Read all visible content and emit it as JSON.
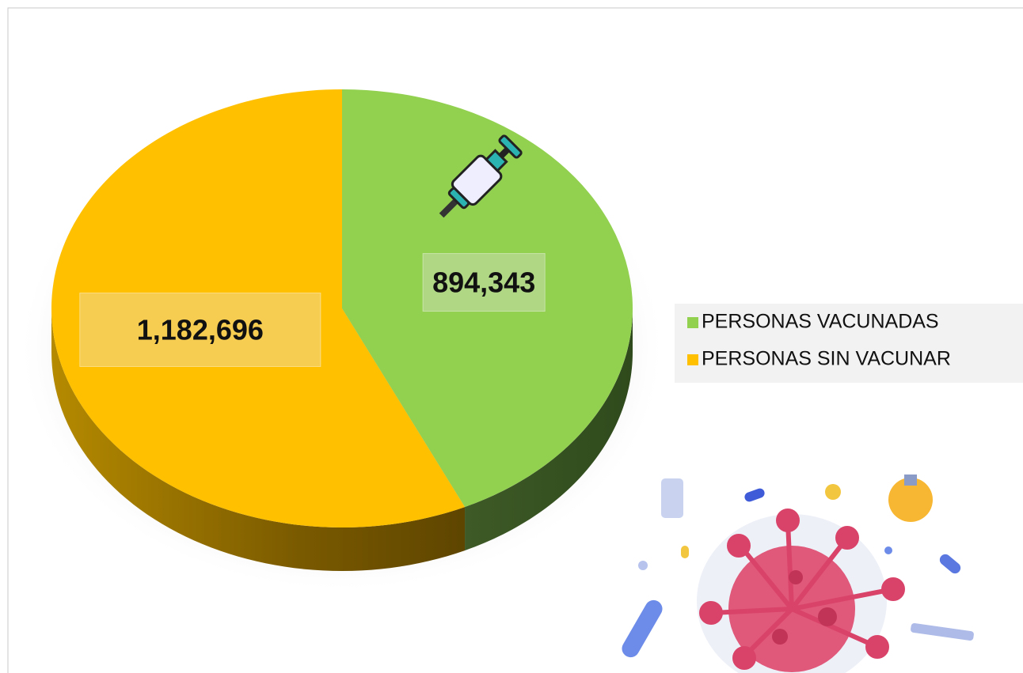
{
  "chart_data": {
    "type": "pie",
    "categories": [
      "PERSONAS VACUNADAS",
      "PERSONAS SIN VACUNAR"
    ],
    "values": [
      894343,
      1182696
    ],
    "value_labels": [
      "894,343",
      "1,182,696"
    ],
    "colors": [
      "#92d050",
      "#ffc000"
    ],
    "legend": "right"
  }
}
